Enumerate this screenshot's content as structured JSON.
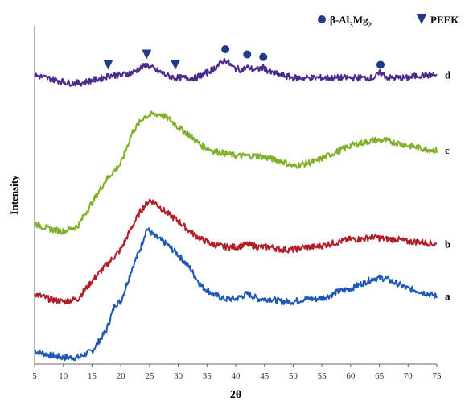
{
  "chart_data": {
    "type": "line",
    "title": "",
    "xlabel": "2θ",
    "ylabel": "Intensity",
    "xlim": [
      5,
      75
    ],
    "xticks": [
      5,
      10,
      15,
      20,
      25,
      30,
      35,
      40,
      45,
      50,
      55,
      60,
      65,
      70,
      75
    ],
    "y_ticks_shown": false,
    "grid": false,
    "legend": {
      "placement": "top-right",
      "entries": [
        {
          "label_main": "β-Al",
          "sub1": "3",
          "mid": "Mg",
          "sub2": "2",
          "marker": "circle",
          "color": "#1f3c88"
        },
        {
          "label": "PEEK",
          "marker": "triangle-down",
          "color": "#1f3c88"
        }
      ]
    },
    "series": [
      {
        "name": "a",
        "color": "#1f57b5",
        "x": [
          5,
          7.5,
          10,
          12.5,
          15,
          17.5,
          19,
          20,
          22,
          23.5,
          24.5,
          26,
          28,
          30,
          32,
          34,
          36,
          38,
          40,
          42,
          44,
          46,
          48,
          50,
          52,
          54,
          56,
          58,
          60,
          62,
          64,
          66,
          68,
          70,
          72,
          75
        ],
        "y": [
          5,
          3.5,
          2.5,
          2.5,
          5,
          13,
          23,
          24,
          37,
          45,
          52,
          49,
          46,
          42,
          37,
          30,
          27,
          25,
          25,
          27,
          25,
          25,
          24,
          24,
          25,
          25,
          26,
          28,
          29,
          31,
          33,
          33,
          31,
          29,
          28,
          26
        ]
      },
      {
        "name": "b",
        "color": "#b01e28",
        "x": [
          5,
          7.5,
          10,
          12.5,
          15,
          17.5,
          20,
          22,
          23.5,
          25,
          26,
          28,
          30,
          32,
          34,
          36,
          38,
          40,
          42,
          44,
          46,
          48,
          50,
          52,
          54,
          56,
          58,
          60,
          62,
          64,
          66,
          68,
          70,
          72,
          75
        ],
        "y": [
          27,
          25,
          24,
          25,
          32,
          38,
          44,
          53,
          59,
          63,
          62,
          58,
          55,
          51,
          48,
          46,
          45,
          45,
          46,
          45,
          45,
          44,
          44,
          45,
          45,
          46,
          47,
          48,
          48,
          49,
          48,
          48,
          47,
          47,
          46
        ]
      },
      {
        "name": "c",
        "color": "#7fb02a",
        "x": [
          5,
          7.5,
          10,
          12.5,
          15,
          17.5,
          20,
          22,
          24,
          25.5,
          27,
          28.5,
          30,
          32,
          34,
          36,
          38,
          40,
          42,
          44,
          46,
          48,
          50,
          52,
          54,
          56,
          58,
          60,
          62,
          64,
          66,
          68,
          70,
          72,
          75
        ],
        "y": [
          54,
          52,
          51,
          53,
          62,
          71,
          77,
          89,
          95,
          96,
          96,
          94,
          91,
          88,
          84,
          82,
          81,
          80,
          80,
          80,
          79,
          78,
          76,
          77,
          78,
          80,
          82,
          84,
          85,
          86,
          86,
          85,
          84,
          83,
          82
        ]
      },
      {
        "name": "d",
        "color": "#4b2a8c",
        "x": [
          5,
          7,
          9,
          11,
          13,
          15,
          17,
          18,
          20,
          22,
          24.5,
          26,
          28,
          29.5,
          31,
          33,
          35,
          36.5,
          38.2,
          39.5,
          41,
          42,
          43.5,
          44.8,
          46,
          48,
          50,
          52,
          54,
          56,
          58,
          60,
          62,
          64,
          65.2,
          66.5,
          68,
          70,
          72,
          75
        ],
        "y": [
          111,
          110,
          109,
          108,
          108,
          109,
          110,
          111,
          111,
          112,
          115,
          113,
          111,
          110,
          110,
          110,
          112,
          114,
          117,
          114,
          113,
          114,
          113,
          114,
          112,
          111,
          110,
          110,
          110,
          110,
          110,
          110,
          110,
          110,
          112,
          110,
          110,
          110,
          111,
          111
        ]
      }
    ],
    "markers": [
      {
        "series": "d",
        "x": 17.8,
        "y": 115,
        "type": "peek"
      },
      {
        "series": "d",
        "x": 24.5,
        "y": 119,
        "type": "peek"
      },
      {
        "series": "d",
        "x": 29.5,
        "y": 115,
        "type": "peek"
      },
      {
        "series": "d",
        "x": 38.2,
        "y": 121,
        "type": "al3mg2"
      },
      {
        "series": "d",
        "x": 42.0,
        "y": 119,
        "type": "al3mg2"
      },
      {
        "series": "d",
        "x": 44.8,
        "y": 118,
        "type": "al3mg2"
      },
      {
        "series": "d",
        "x": 65.2,
        "y": 115,
        "type": "al3mg2"
      }
    ],
    "ylim": [
      0,
      130
    ]
  }
}
